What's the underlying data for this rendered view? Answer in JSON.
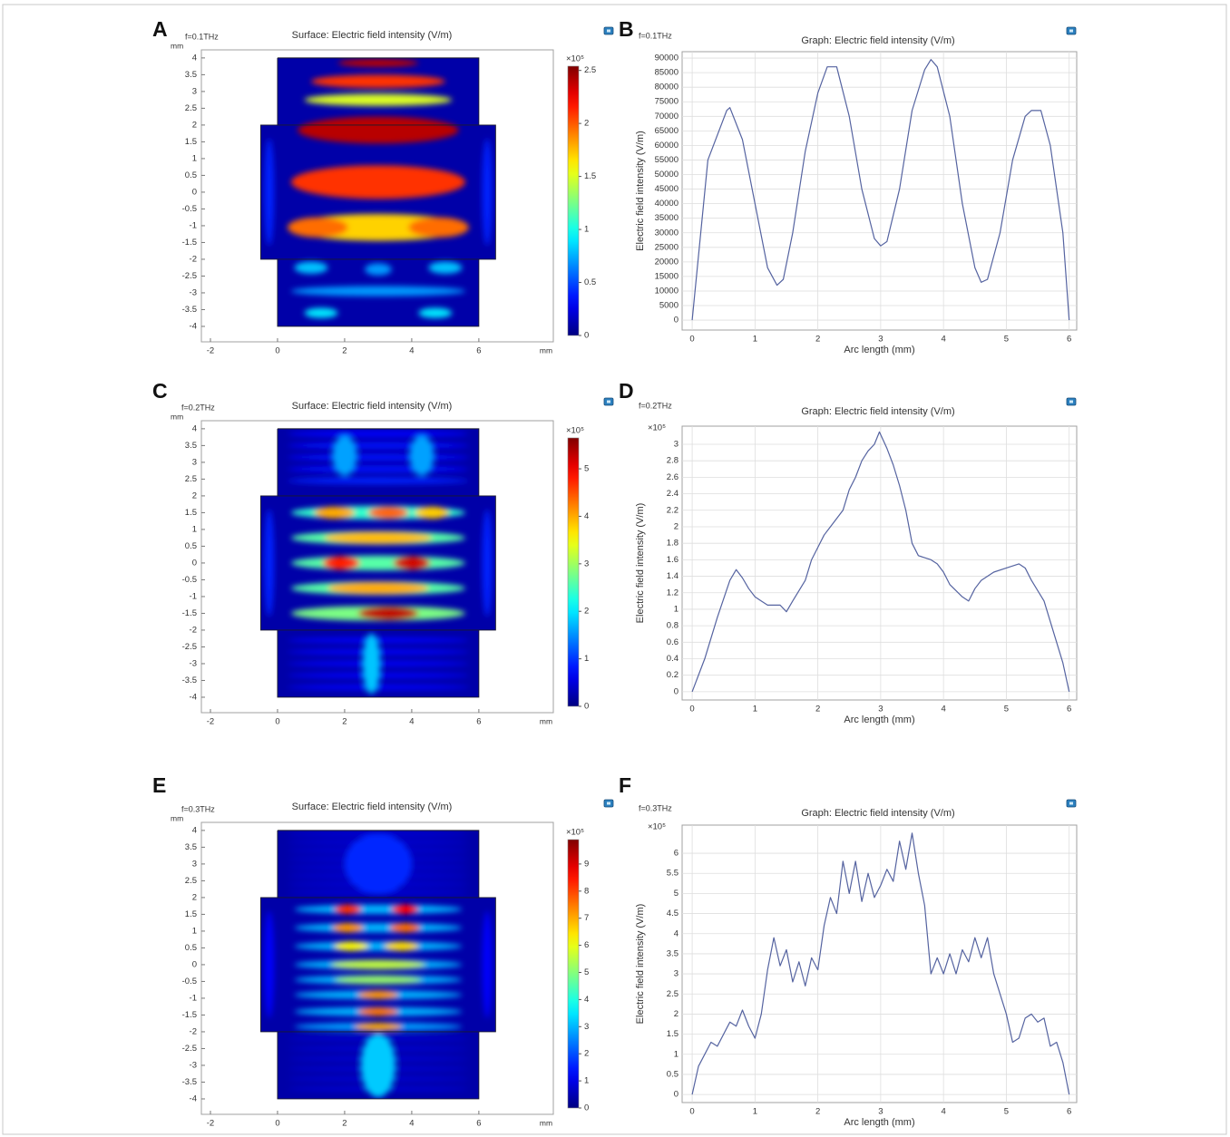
{
  "chart_data": [
    {
      "type": "surface",
      "panel": "A",
      "frequency": "f=0.1THz",
      "title": "Surface: Electric field intensity (V/m)",
      "x_unit": "mm",
      "y_unit": "mm",
      "xlim": [
        -2.27,
        8.22
      ],
      "ylim": [
        -4.46,
        4.24
      ],
      "xticks": [
        -2,
        0,
        2,
        4,
        6
      ],
      "yticks": [
        -4,
        -3.5,
        -3,
        -2.5,
        -2,
        -1.5,
        -1,
        -0.5,
        0,
        0.5,
        1,
        1.5,
        2,
        2.5,
        3,
        3.5,
        4
      ],
      "color_multiplier": "×10⁵",
      "clim": [
        0,
        2.54
      ],
      "cticks": [
        0,
        0.5,
        1,
        1.5,
        2,
        2.5
      ],
      "boundaries": [
        {
          "x": [
            0,
            6,
            6,
            6.5,
            6.5,
            6,
            6,
            0,
            0,
            -0.5,
            -0.5,
            0,
            0
          ],
          "y": [
            4,
            4,
            2,
            2,
            -2,
            -2,
            -4,
            -4,
            -2,
            -2,
            2,
            2,
            4
          ]
        },
        {
          "x": [
            0,
            6
          ],
          "y": [
            2,
            2
          ]
        },
        {
          "x": [
            0,
            6
          ],
          "y": [
            -2,
            -2
          ]
        }
      ],
      "spots": {
        "x": [
          3,
          3,
          3,
          3,
          3,
          3,
          1.2,
          4.8,
          1,
          3,
          5,
          3,
          1.3,
          4.7,
          -0.25,
          6.25
        ],
        "y": [
          3.85,
          3.3,
          2.75,
          1.85,
          0.3,
          -1.05,
          -1.05,
          -1.05,
          -2.25,
          -2.3,
          -2.25,
          -2.95,
          -3.6,
          -3.6,
          0,
          0
        ],
        "rx": [
          1.2,
          2,
          2.2,
          2.4,
          2.6,
          2.7,
          0.9,
          0.9,
          0.5,
          0.4,
          0.5,
          2.6,
          0.5,
          0.5,
          0.15,
          0.15
        ],
        "ry": [
          0.12,
          0.2,
          0.18,
          0.4,
          0.5,
          0.4,
          0.3,
          0.3,
          0.18,
          0.18,
          0.18,
          0.15,
          0.15,
          0.15,
          1.6,
          1.6
        ],
        "values": [
          2.4,
          2.1,
          1.5,
          2.4,
          2.1,
          1.7,
          1.95,
          1.95,
          0.8,
          0.7,
          0.8,
          0.7,
          0.9,
          0.9,
          0.4,
          0.4
        ]
      }
    },
    {
      "type": "line",
      "panel": "B",
      "frequency": "f=0.1THz",
      "title": "Graph: Electric field intensity (V/m)",
      "xlabel": "Arc length (mm)",
      "ylabel": "Electric field intensity (V/m)",
      "color": "#5563a0",
      "grid": true,
      "xlim": [
        -0.16,
        6.12
      ],
      "ylim": [
        -3400,
        92200
      ],
      "xticks": [
        0,
        1,
        2,
        3,
        4,
        5,
        6
      ],
      "yticks": [
        0,
        5000,
        10000,
        15000,
        20000,
        25000,
        30000,
        35000,
        40000,
        45000,
        50000,
        55000,
        60000,
        65000,
        70000,
        75000,
        80000,
        85000,
        90000
      ],
      "x": [
        0,
        0.25,
        0.55,
        0.6,
        0.8,
        1,
        1.2,
        1.35,
        1.45,
        1.6,
        1.8,
        2,
        2.15,
        2.3,
        2.5,
        2.7,
        2.9,
        3,
        3.1,
        3.3,
        3.5,
        3.7,
        3.8,
        3.9,
        4.1,
        4.3,
        4.5,
        4.6,
        4.7,
        4.9,
        5.1,
        5.3,
        5.4,
        5.55,
        5.7,
        5.9,
        6
      ],
      "values": [
        0,
        55000,
        72000,
        73000,
        62000,
        40000,
        18000,
        12000,
        14000,
        30000,
        58000,
        78000,
        87000,
        87000,
        70000,
        45000,
        28000,
        25500,
        27000,
        45000,
        72000,
        86000,
        89500,
        87000,
        70000,
        40000,
        18000,
        13000,
        14000,
        30000,
        55000,
        70000,
        72000,
        72000,
        60000,
        30000,
        0
      ]
    },
    {
      "type": "surface",
      "panel": "C",
      "frequency": "f=0.2THz",
      "title": "Surface: Electric field intensity (V/m)",
      "x_unit": "mm",
      "y_unit": "mm",
      "xlim": [
        -2.27,
        8.22
      ],
      "ylim": [
        -4.46,
        4.24
      ],
      "xticks": [
        -2,
        0,
        2,
        4,
        6
      ],
      "yticks": [
        -4,
        -3.5,
        -3,
        -2.5,
        -2,
        -1.5,
        -1,
        -0.5,
        0,
        0.5,
        1,
        1.5,
        2,
        2.5,
        3,
        3.5,
        4
      ],
      "color_multiplier": "×10⁵",
      "clim": [
        0,
        5.65
      ],
      "cticks": [
        0,
        1,
        2,
        3,
        4,
        5
      ],
      "boundaries": [
        {
          "x": [
            0,
            6,
            6,
            6.5,
            6.5,
            6,
            6,
            0,
            0,
            -0.5,
            -0.5,
            0,
            0
          ],
          "y": [
            4,
            4,
            2,
            2,
            -2,
            -2,
            -4,
            -4,
            -2,
            -2,
            2,
            2,
            4
          ]
        },
        {
          "x": [
            0,
            6
          ],
          "y": [
            2,
            2
          ]
        },
        {
          "x": [
            0,
            6
          ],
          "y": [
            -2,
            -2
          ]
        }
      ],
      "spots": {
        "x": [
          3,
          3,
          3,
          3,
          3,
          2,
          4.3,
          3,
          1.7,
          3.3,
          4.6,
          3,
          3,
          3,
          1.9,
          4,
          3,
          3,
          3,
          3.3,
          3,
          3,
          3,
          3,
          3,
          2.8,
          -0.25,
          6.25
        ],
        "y": [
          3.85,
          3.5,
          3.15,
          2.8,
          2.45,
          3.2,
          3.2,
          1.5,
          1.5,
          1.5,
          1.5,
          0.75,
          0.75,
          0,
          0,
          0,
          -0.75,
          -0.75,
          -1.5,
          -1.5,
          -2.3,
          -2.65,
          -3,
          -3.35,
          -3.7,
          -3,
          0,
          0
        ],
        "rx": [
          2.7,
          2.7,
          2.7,
          2.7,
          2.7,
          0.35,
          0.35,
          2.6,
          0.6,
          0.6,
          0.5,
          2.6,
          1.6,
          2.6,
          0.55,
          0.55,
          2.6,
          1.5,
          2.6,
          0.9,
          2.7,
          2.7,
          2.7,
          2.7,
          2.7,
          0.25,
          0.15,
          0.15
        ],
        "ry": [
          0.1,
          0.1,
          0.1,
          0.1,
          0.1,
          0.6,
          0.6,
          0.2,
          0.18,
          0.18,
          0.18,
          0.2,
          0.18,
          0.22,
          0.2,
          0.2,
          0.2,
          0.18,
          0.22,
          0.2,
          0.08,
          0.08,
          0.08,
          0.08,
          0.08,
          0.9,
          1.6,
          1.6
        ],
        "values": [
          0.7,
          0.8,
          0.8,
          0.8,
          0.9,
          1.6,
          1.6,
          2.4,
          4,
          4.4,
          3.8,
          2.6,
          3.9,
          2.6,
          4.8,
          5.2,
          2.6,
          4,
          2.8,
          5.3,
          0.7,
          0.7,
          0.7,
          0.7,
          0.7,
          1.8,
          0.9,
          0.9
        ]
      }
    },
    {
      "type": "line",
      "panel": "D",
      "frequency": "f=0.2THz",
      "title": "Graph: Electric field intensity (V/m)",
      "xlabel": "Arc length (mm)",
      "ylabel": "Electric field intensity (V/m)",
      "y_multiplier": "×10⁵",
      "color": "#5563a0",
      "grid": true,
      "xlim": [
        -0.16,
        6.12
      ],
      "ylim": [
        -0.1,
        3.22
      ],
      "xticks": [
        0,
        1,
        2,
        3,
        4,
        5,
        6
      ],
      "yticks": [
        0,
        0.2,
        0.4,
        0.6,
        0.8,
        1,
        1.2,
        1.4,
        1.6,
        1.8,
        2,
        2.2,
        2.4,
        2.6,
        2.8,
        3
      ],
      "x": [
        0,
        0.2,
        0.4,
        0.6,
        0.7,
        0.8,
        0.9,
        1,
        1.1,
        1.2,
        1.4,
        1.5,
        1.6,
        1.8,
        1.9,
        2,
        2.1,
        2.2,
        2.4,
        2.5,
        2.6,
        2.7,
        2.8,
        2.9,
        2.98,
        3.1,
        3.2,
        3.3,
        3.4,
        3.5,
        3.6,
        3.8,
        3.9,
        4,
        4.1,
        4.3,
        4.4,
        4.5,
        4.6,
        4.8,
        5,
        5.2,
        5.3,
        5.4,
        5.6,
        5.8,
        5.9,
        6
      ],
      "values": [
        0,
        0.4,
        0.9,
        1.35,
        1.48,
        1.38,
        1.25,
        1.15,
        1.1,
        1.05,
        1.05,
        0.97,
        1.1,
        1.35,
        1.6,
        1.75,
        1.9,
        2,
        2.2,
        2.45,
        2.6,
        2.8,
        2.92,
        3,
        3.15,
        2.95,
        2.75,
        2.5,
        2.2,
        1.8,
        1.65,
        1.6,
        1.55,
        1.45,
        1.3,
        1.15,
        1.1,
        1.25,
        1.35,
        1.45,
        1.5,
        1.55,
        1.5,
        1.35,
        1.1,
        0.6,
        0.35,
        0
      ]
    },
    {
      "type": "surface",
      "panel": "E",
      "frequency": "f=0.3THz",
      "title": "Surface: Electric field intensity (V/m)",
      "x_unit": "mm",
      "y_unit": "mm",
      "xlim": [
        -2.27,
        8.22
      ],
      "ylim": [
        -4.46,
        4.24
      ],
      "xticks": [
        -2,
        0,
        2,
        4,
        6
      ],
      "yticks": [
        -4,
        -3.5,
        -3,
        -2.5,
        -2,
        -1.5,
        -1,
        -0.5,
        0,
        0.5,
        1,
        1.5,
        2,
        2.5,
        3,
        3.5,
        4
      ],
      "color_multiplier": "×10⁵",
      "clim": [
        0,
        9.9
      ],
      "cticks": [
        0,
        1,
        2,
        3,
        4,
        5,
        6,
        7,
        8,
        9
      ],
      "boundaries": [
        {
          "x": [
            0,
            6,
            6,
            6.5,
            6.5,
            6,
            6,
            0,
            0,
            -0.5,
            -0.5,
            0,
            0
          ],
          "y": [
            4,
            4,
            2,
            2,
            -2,
            -2,
            -4,
            -4,
            -2,
            -2,
            2,
            2,
            4
          ]
        },
        {
          "x": [
            0,
            6
          ],
          "y": [
            2,
            2
          ]
        },
        {
          "x": [
            0,
            6
          ],
          "y": [
            -2,
            -2
          ]
        }
      ],
      "spots": {
        "x": [
          3,
          3,
          3,
          3,
          3,
          3,
          3,
          3,
          3,
          3,
          2.1,
          3.8,
          3,
          2.1,
          3.8,
          3,
          2.2,
          3.7,
          3,
          3,
          3,
          3,
          3,
          3,
          3,
          3,
          3,
          3,
          3,
          3,
          3,
          3,
          3,
          3,
          3,
          -0.25,
          6.25
        ],
        "y": [
          3.9,
          3.65,
          3.4,
          3.15,
          2.9,
          2.65,
          2.4,
          2.15,
          3,
          1.65,
          1.65,
          1.65,
          1.1,
          1.1,
          1.1,
          0.55,
          0.55,
          0.55,
          0,
          0,
          -0.45,
          -0.45,
          -0.9,
          -0.9,
          -1.4,
          -1.4,
          -1.85,
          -1.85,
          -2.2,
          -2.5,
          -2.8,
          -3.1,
          -3.4,
          -3.7,
          -3,
          0,
          0
        ],
        "rx": [
          2.7,
          2.7,
          2.7,
          2.7,
          2.7,
          2.7,
          2.7,
          2.7,
          1,
          2.5,
          0.4,
          0.4,
          2.5,
          0.45,
          0.45,
          2.5,
          0.5,
          0.5,
          2.5,
          1.4,
          2.5,
          1.3,
          2.5,
          0.6,
          2.5,
          0.6,
          2.5,
          0.7,
          2.7,
          2.7,
          2.7,
          2.7,
          2.7,
          2.7,
          0.5,
          0.15,
          0.15
        ],
        "ry": [
          0.07,
          0.07,
          0.07,
          0.07,
          0.07,
          0.07,
          0.07,
          0.07,
          0.9,
          0.14,
          0.14,
          0.14,
          0.14,
          0.14,
          0.14,
          0.14,
          0.14,
          0.14,
          0.14,
          0.14,
          0.13,
          0.13,
          0.13,
          0.13,
          0.13,
          0.13,
          0.12,
          0.12,
          0.06,
          0.06,
          0.06,
          0.06,
          0.06,
          0.06,
          0.95,
          1.6,
          1.6
        ],
        "values": [
          0.9,
          0.9,
          0.9,
          0.9,
          0.9,
          0.9,
          0.9,
          0.9,
          1.6,
          3,
          8.2,
          8.6,
          3,
          7.2,
          7.6,
          3,
          6.2,
          6.5,
          3,
          5.6,
          3,
          5.2,
          3,
          7.2,
          3,
          7.5,
          2.8,
          7,
          0.9,
          0.9,
          0.9,
          0.9,
          0.9,
          0.9,
          3.2,
          1.2,
          1.2
        ]
      }
    },
    {
      "type": "line",
      "panel": "F",
      "frequency": "f=0.3THz",
      "title": "Graph: Electric field intensity (V/m)",
      "xlabel": "Arc length (mm)",
      "ylabel": "Electric field intensity (V/m)",
      "y_multiplier": "×10⁵",
      "color": "#5563a0",
      "grid": true,
      "xlim": [
        -0.16,
        6.12
      ],
      "ylim": [
        -0.2,
        6.7
      ],
      "xticks": [
        0,
        1,
        2,
        3,
        4,
        5,
        6
      ],
      "yticks": [
        0,
        0.5,
        1,
        1.5,
        2,
        2.5,
        3,
        3.5,
        4,
        4.5,
        5,
        5.5,
        6
      ],
      "x": [
        0,
        0.1,
        0.3,
        0.4,
        0.6,
        0.7,
        0.8,
        0.9,
        1,
        1.1,
        1.2,
        1.3,
        1.4,
        1.5,
        1.6,
        1.7,
        1.8,
        1.9,
        2,
        2.1,
        2.2,
        2.3,
        2.4,
        2.5,
        2.6,
        2.7,
        2.8,
        2.9,
        3,
        3.1,
        3.2,
        3.3,
        3.4,
        3.5,
        3.6,
        3.7,
        3.8,
        3.9,
        4,
        4.1,
        4.2,
        4.3,
        4.4,
        4.5,
        4.6,
        4.7,
        4.8,
        5,
        5.1,
        5.2,
        5.3,
        5.4,
        5.5,
        5.6,
        5.7,
        5.8,
        5.9,
        6
      ],
      "values": [
        0,
        0.7,
        1.3,
        1.2,
        1.8,
        1.7,
        2.1,
        1.7,
        1.4,
        2,
        3.1,
        3.9,
        3.2,
        3.6,
        2.8,
        3.3,
        2.7,
        3.4,
        3.1,
        4.2,
        4.9,
        4.5,
        5.8,
        5,
        5.8,
        4.8,
        5.5,
        4.9,
        5.2,
        5.6,
        5.3,
        6.3,
        5.6,
        6.5,
        5.5,
        4.7,
        3,
        3.4,
        3,
        3.5,
        3,
        3.6,
        3.3,
        3.9,
        3.4,
        3.9,
        3,
        2,
        1.3,
        1.4,
        1.9,
        2,
        1.8,
        1.9,
        1.2,
        1.3,
        0.8,
        0
      ]
    }
  ]
}
